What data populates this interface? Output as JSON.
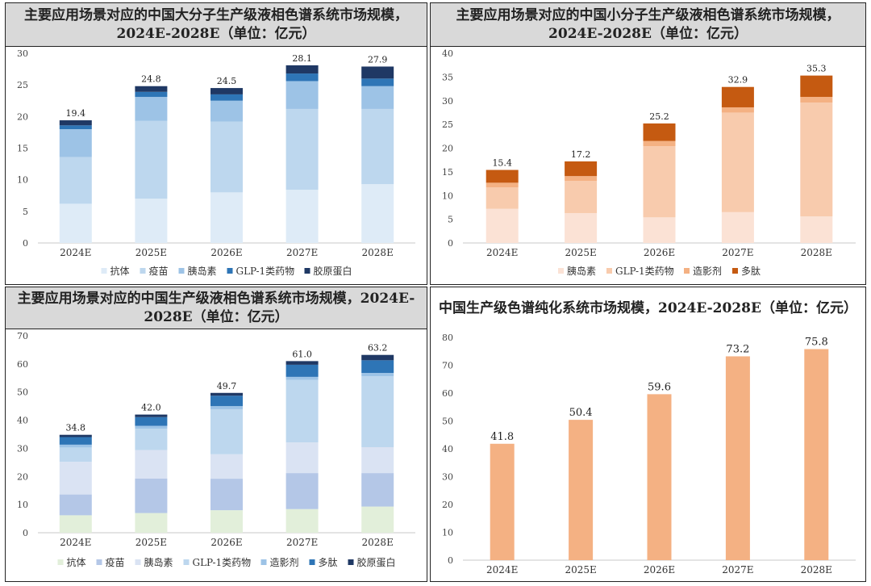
{
  "colors": {
    "抗体": "#deebf7",
    "疫苗": "#bdd7ee",
    "胰岛素": "#9dc3e6",
    "GLP-1类药物": "#2e75b6",
    "胶原蛋白": "#1f3864",
    "p2_胰岛素": "#fbe2d5",
    "p2_GLP-1类药物": "#f8cbad",
    "p2_造影剂": "#f4b183",
    "p2_多肽": "#c55a11",
    "p3_抗体": "#e2efda",
    "p3_疫苗": "#b4c7e7",
    "p3_胰岛素": "#dae3f3",
    "p3_GLP-1类药物": "#bdd7ee",
    "p3_造影剂": "#9dc3e6",
    "p3_多肽": "#2e75b6",
    "p3_胶原蛋白": "#1f3864",
    "p4_bar": "#f4b183"
  },
  "panels": [
    {
      "title": "主要应用场景对应的中国大分子生产级液相色谱系统市场规模，2024E-2028E（单位：亿元）"
    },
    {
      "title": "主要应用场景对应的中国小分子生产级液相色谱系统市场规模，2024E-2028E（单位：亿元）"
    },
    {
      "title": "主要应用场景对应的中国生产级液相色谱系统市场规模，2024E-2028E（单位：亿元）"
    },
    {
      "title": "中国生产级色谱纯化系统市场规模，2024E-2028E（单位：亿元）"
    }
  ],
  "chart_data": [
    {
      "type": "bar",
      "stacked": true,
      "title": "主要应用场景对应的中国大分子生产级液相色谱系统市场规模，2024E-2028E（单位：亿元）",
      "categories": [
        "2024E",
        "2025E",
        "2026E",
        "2027E",
        "2028E"
      ],
      "ylim": [
        0,
        30
      ],
      "yticks": [
        0,
        5,
        10,
        15,
        20,
        25,
        30
      ],
      "totals": [
        "19.4",
        "24.8",
        "24.5",
        "28.1",
        "27.9"
      ],
      "series": [
        {
          "name": "抗体",
          "colorKey": "抗体",
          "values": [
            6.2,
            7.0,
            8.0,
            8.4,
            9.3
          ]
        },
        {
          "name": "疫苗",
          "colorKey": "疫苗",
          "values": [
            7.4,
            12.3,
            11.2,
            12.8,
            11.9
          ]
        },
        {
          "name": "胰岛素",
          "colorKey": "胰岛素",
          "values": [
            4.4,
            3.8,
            3.3,
            4.4,
            3.6
          ]
        },
        {
          "name": "GLP-1类药物",
          "colorKey": "GLP-1类药物",
          "values": [
            0.6,
            0.8,
            1.0,
            1.2,
            1.2
          ]
        },
        {
          "name": "胶原蛋白",
          "colorKey": "胶原蛋白",
          "values": [
            0.8,
            0.9,
            1.0,
            1.3,
            1.9
          ]
        }
      ]
    },
    {
      "type": "bar",
      "stacked": true,
      "title": "主要应用场景对应的中国小分子生产级液相色谱系统市场规模，2024E-2028E（单位：亿元）",
      "categories": [
        "2024E",
        "2025E",
        "2026E",
        "2027E",
        "2028E"
      ],
      "ylim": [
        0,
        40
      ],
      "yticks": [
        0,
        5,
        10,
        15,
        20,
        25,
        30,
        35,
        40
      ],
      "totals": [
        "15.4",
        "17.2",
        "25.2",
        "32.9",
        "35.3"
      ],
      "series": [
        {
          "name": "胰岛素",
          "colorKey": "p2_胰岛素",
          "values": [
            7.2,
            6.3,
            5.4,
            6.5,
            5.6
          ]
        },
        {
          "name": "GLP-1类药物",
          "colorKey": "p2_GLP-1类药物",
          "values": [
            4.5,
            6.8,
            15.0,
            21.0,
            24.0
          ]
        },
        {
          "name": "造影剂",
          "colorKey": "p2_造影剂",
          "values": [
            1.0,
            1.0,
            1.1,
            1.1,
            1.2
          ]
        },
        {
          "name": "多肽",
          "colorKey": "p2_多肽",
          "values": [
            2.7,
            3.1,
            3.7,
            4.3,
            4.5
          ]
        }
      ]
    },
    {
      "type": "bar",
      "stacked": true,
      "title": "主要应用场景对应的中国生产级液相色谱系统市场规模，2024E-2028E（单位：亿元）",
      "categories": [
        "2024E",
        "2025E",
        "2026E",
        "2027E",
        "2028E"
      ],
      "ylim": [
        0,
        70
      ],
      "yticks": [
        0,
        10,
        20,
        30,
        40,
        50,
        60,
        70
      ],
      "totals": [
        "34.8",
        "42.0",
        "49.7",
        "61.0",
        "63.2"
      ],
      "series": [
        {
          "name": "抗体",
          "colorKey": "p3_抗体",
          "values": [
            6.2,
            7.0,
            8.0,
            8.4,
            9.3
          ]
        },
        {
          "name": "疫苗",
          "colorKey": "p3_疫苗",
          "values": [
            7.4,
            12.3,
            11.2,
            12.8,
            11.9
          ]
        },
        {
          "name": "胰岛素",
          "colorKey": "p3_胰岛素",
          "values": [
            11.6,
            10.1,
            8.7,
            10.9,
            9.2
          ]
        },
        {
          "name": "GLP-1类药物",
          "colorKey": "p3_GLP-1类药物",
          "values": [
            5.1,
            7.6,
            16.0,
            22.2,
            25.2
          ]
        },
        {
          "name": "造影剂",
          "colorKey": "p3_造影剂",
          "values": [
            1.0,
            1.0,
            1.1,
            1.1,
            1.2
          ]
        },
        {
          "name": "多肽",
          "colorKey": "p3_多肽",
          "values": [
            2.7,
            3.1,
            3.7,
            4.3,
            4.5
          ]
        },
        {
          "name": "胶原蛋白",
          "colorKey": "p3_胶原蛋白",
          "values": [
            0.8,
            0.9,
            1.0,
            1.3,
            1.9
          ]
        }
      ]
    },
    {
      "type": "bar",
      "stacked": false,
      "title": "中国生产级色谱纯化系统市场规模，2024E-2028E（单位：亿元）",
      "categories": [
        "2024E",
        "2025E",
        "2026E",
        "2027E",
        "2028E"
      ],
      "ylim": [
        0,
        80
      ],
      "yticks": [
        0,
        10,
        20,
        30,
        40,
        50,
        60,
        70,
        80
      ],
      "totals": [
        "41.8",
        "50.4",
        "59.6",
        "73.2",
        "75.8"
      ],
      "series": [
        {
          "name": "市场规模",
          "colorKey": "p4_bar",
          "values": [
            41.8,
            50.4,
            59.6,
            73.2,
            75.8
          ]
        }
      ]
    }
  ]
}
